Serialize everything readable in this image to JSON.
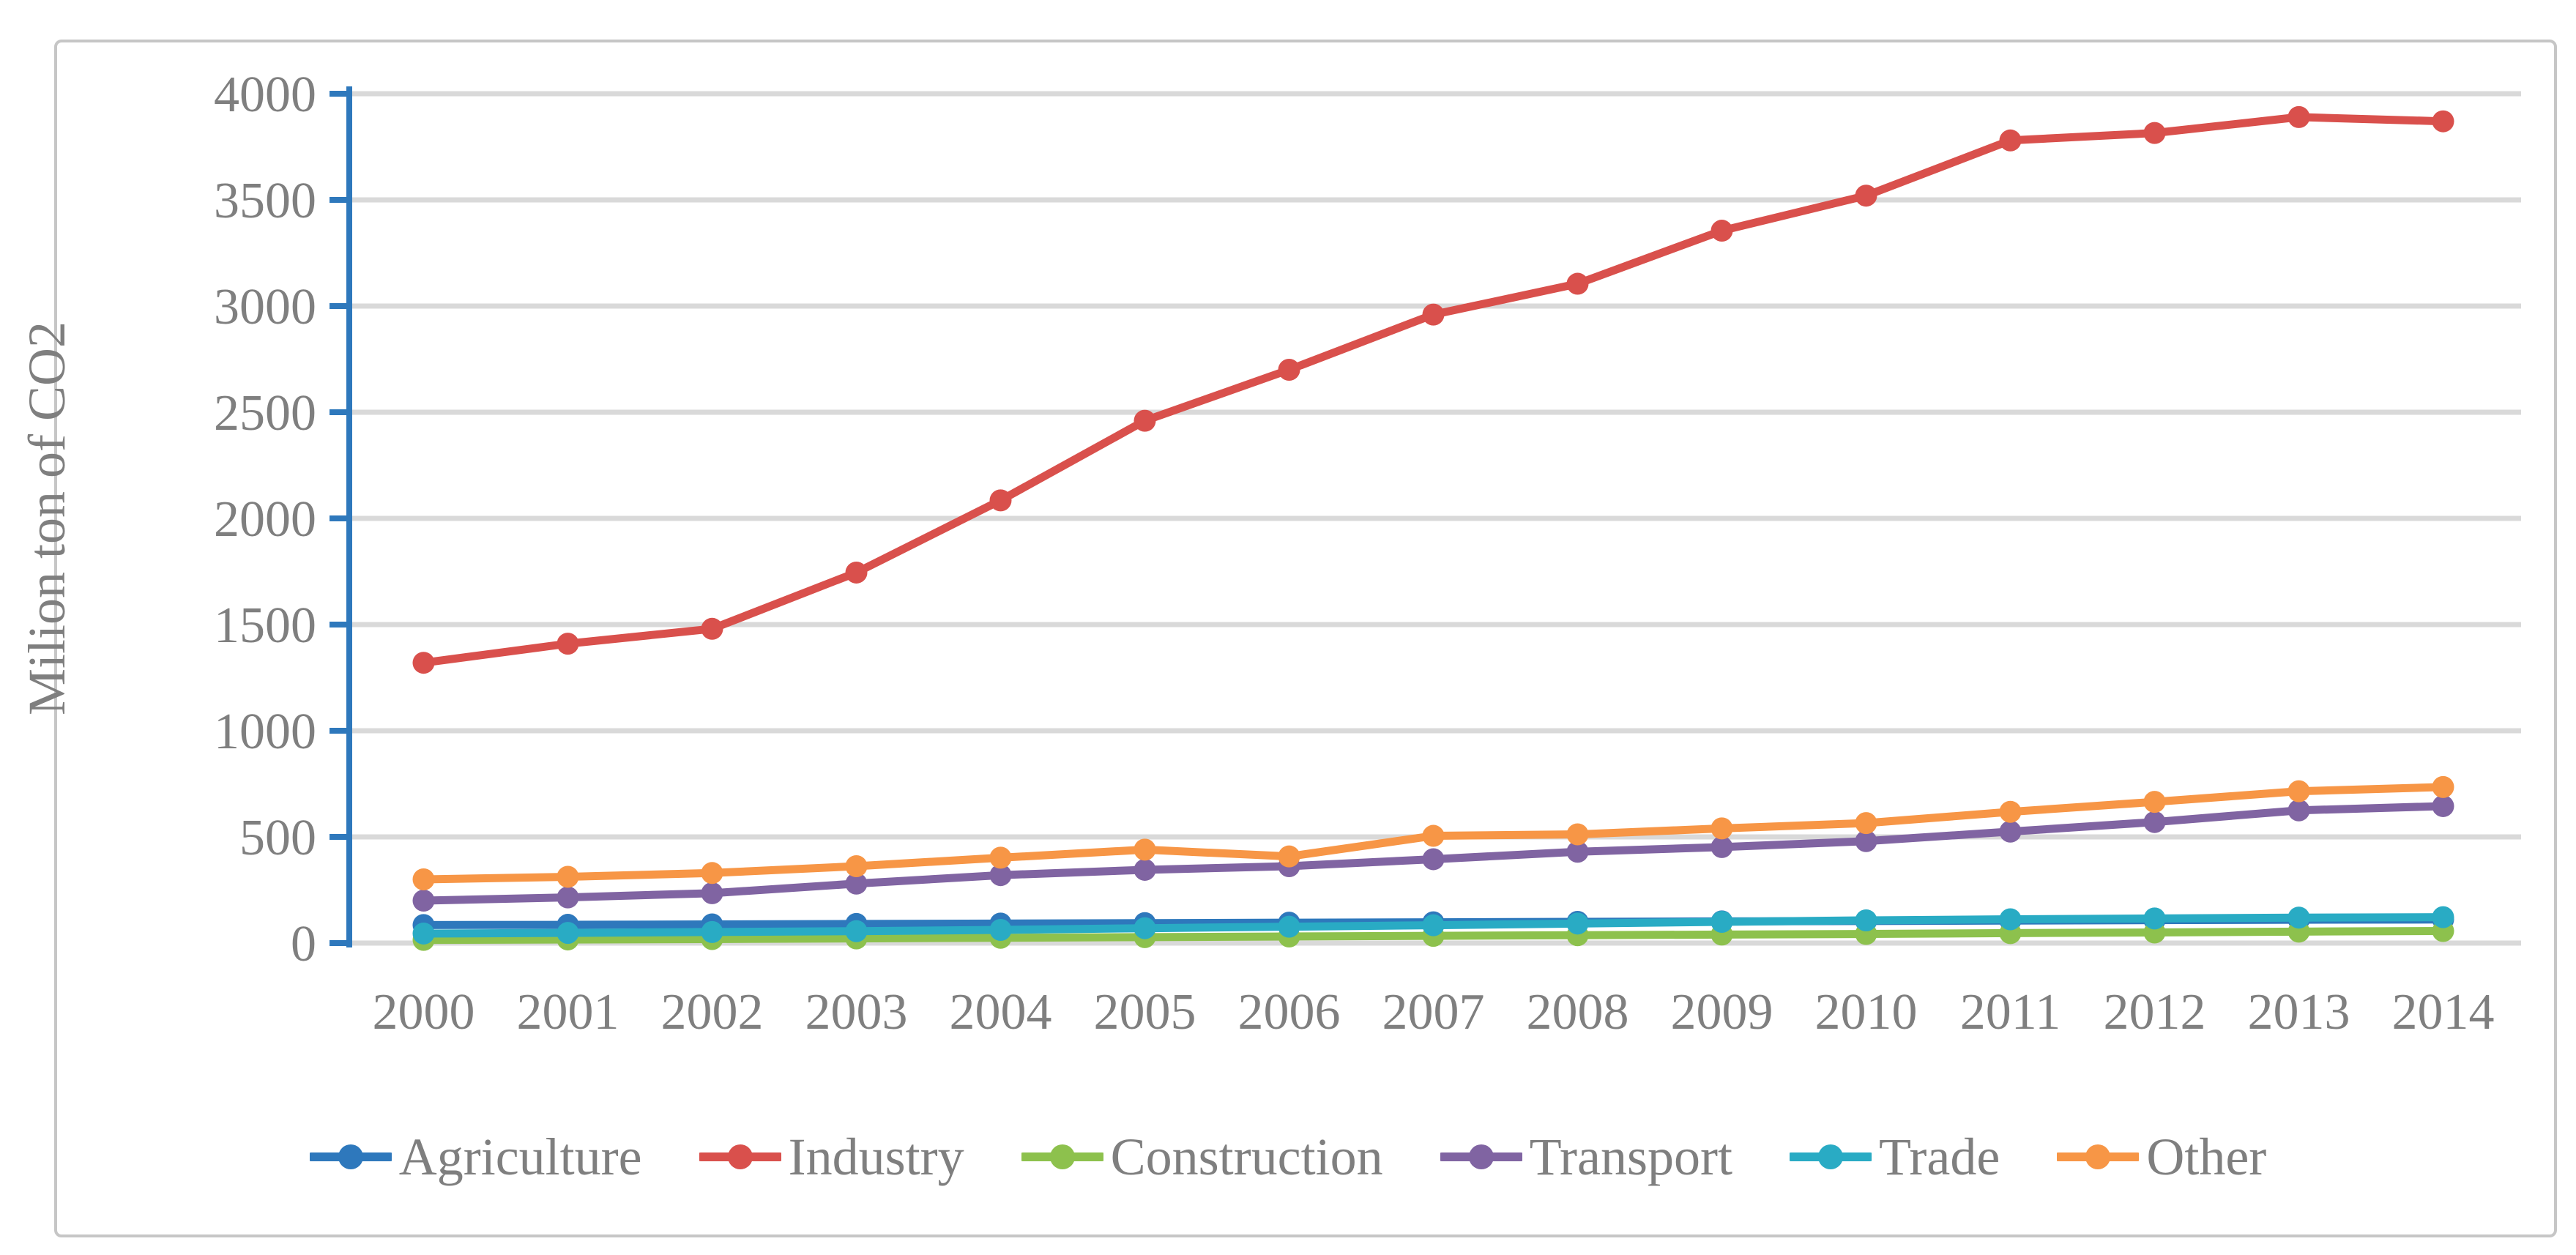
{
  "figure": {
    "y_axis_title": "Milion ton of CO2",
    "background_color": "#ffffff",
    "border_color": "#c6c6c6",
    "gridline_color": "#d9d9d9",
    "axis_line_color": "#2e78bc",
    "label_color": "#7f7f7f"
  },
  "chart_data": {
    "type": "line",
    "title": "",
    "xlabel": "",
    "ylabel": "Milion ton of CO2",
    "ylim": [
      0,
      4000
    ],
    "ytick_step": 500,
    "ytick_labels": [
      "0",
      "500",
      "1000",
      "1500",
      "2000",
      "2500",
      "3000",
      "3500",
      "4000"
    ],
    "grid": "horizontal",
    "legend_position": "bottom",
    "marker": "circle",
    "categories": [
      "2000",
      "2001",
      "2002",
      "2003",
      "2004",
      "2005",
      "2006",
      "2007",
      "2008",
      "2009",
      "2010",
      "2011",
      "2012",
      "2013",
      "2014"
    ],
    "series": [
      {
        "name": "Agriculture",
        "color": "#2e78bc",
        "values": [
          85,
          86,
          88,
          90,
          92,
          94,
          96,
          98,
          100,
          102,
          104,
          106,
          108,
          110,
          111
        ]
      },
      {
        "name": "Industry",
        "color": "#d9504c",
        "values": [
          1320,
          1410,
          1480,
          1745,
          2085,
          2460,
          2700,
          2960,
          3105,
          3355,
          3520,
          3780,
          3815,
          3890,
          3870
        ]
      },
      {
        "name": "Construction",
        "color": "#8dc14d",
        "values": [
          15,
          17,
          19,
          22,
          25,
          28,
          31,
          34,
          37,
          40,
          43,
          47,
          50,
          54,
          57
        ]
      },
      {
        "name": "Transport",
        "color": "#8064a2",
        "values": [
          200,
          215,
          235,
          280,
          320,
          345,
          362,
          395,
          430,
          452,
          480,
          525,
          570,
          625,
          645
        ]
      },
      {
        "name": "Trade",
        "color": "#29abc4",
        "values": [
          45,
          48,
          52,
          56,
          62,
          70,
          77,
          84,
          92,
          100,
          107,
          112,
          116,
          120,
          122
        ]
      },
      {
        "name": "Other",
        "color": "#f79646",
        "values": [
          300,
          312,
          330,
          362,
          402,
          440,
          408,
          505,
          512,
          540,
          565,
          618,
          665,
          715,
          735
        ]
      }
    ]
  }
}
